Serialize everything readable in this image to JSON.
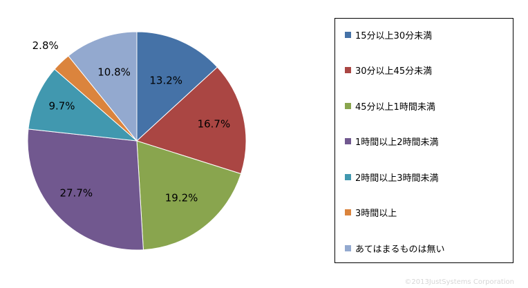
{
  "chart_data": {
    "type": "pie",
    "categories": [
      "15分以上30分未満",
      "30分以上45分未満",
      "45分以上1時間未満",
      "1時間以上2時間未満",
      "2時間以上3時間未満",
      "3時間以上",
      "あてはまるものは無い"
    ],
    "values": [
      13.2,
      16.7,
      19.2,
      27.7,
      9.7,
      2.8,
      10.8
    ],
    "value_labels": [
      "13.2%",
      "16.7%",
      "19.2%",
      "27.7%",
      "9.7%",
      "2.8%",
      "10.8%"
    ],
    "colors": [
      "#4572A7",
      "#AA4643",
      "#89A54E",
      "#71588F",
      "#4198AF",
      "#DB843D",
      "#93A9CF"
    ],
    "start_angle": "12 o'clock",
    "direction": "clockwise",
    "legend_position": "right",
    "title": ""
  },
  "copyright": "©2013JustSystems Corporation"
}
